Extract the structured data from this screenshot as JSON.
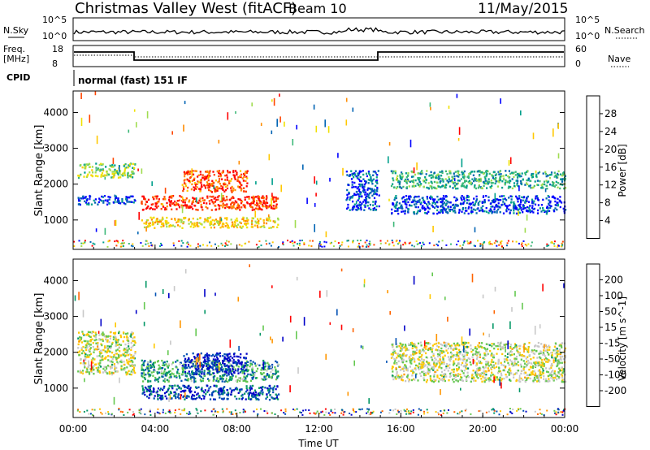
{
  "header": {
    "radar": "Christmas Valley West (fitACF)",
    "beam": "Beam 10",
    "date": "11/May/2015"
  },
  "ancillary": {
    "nsky_label": "N.Sky",
    "nsky_ticks": [
      "10^5",
      "10^0"
    ],
    "nsearch_label": "N.Search",
    "nsearch_ticks": [
      "10^5",
      "10^0"
    ],
    "freq_label": [
      "Freq.",
      "[MHz]"
    ],
    "freq_ticks": [
      "18",
      "8"
    ],
    "nave_label": "Nave",
    "nave_ticks": [
      "60",
      "0"
    ],
    "cpid_label": "CPID",
    "cpid_text": "normal (fast) 151 IF"
  },
  "chart_data": [
    {
      "type": "heatmap",
      "panel": "power",
      "ylabel": "Slant Range [km]",
      "xlim": [
        "00:00",
        "24:00"
      ],
      "ylim": [
        180,
        4600
      ],
      "y_ticks": [
        1000,
        2000,
        3000,
        4000
      ],
      "x_ticks": [
        "00:00",
        "04:00",
        "08:00",
        "12:00",
        "16:00",
        "20:00",
        "00:00"
      ],
      "colorbar": {
        "label": "Power [dB]",
        "ticks": [
          "28",
          "24",
          "20",
          "16",
          "12",
          "8",
          "4"
        ],
        "colors": [
          "#ff0000",
          "#ff4500",
          "#ff8c00",
          "#ffc800",
          "#f0e000",
          "#a0dc50",
          "#3cb878",
          "#00a08c",
          "#0064b4",
          "#0000ff"
        ]
      },
      "features": [
        {
          "t": [
            0.2,
            3.0
          ],
          "r": [
            2200,
            2600
          ],
          "level": 0.45
        },
        {
          "t": [
            0.2,
            3.0
          ],
          "r": [
            1450,
            1700
          ],
          "level": 0.1
        },
        {
          "t": [
            3.3,
            10.0
          ],
          "r": [
            1300,
            1700
          ],
          "level": 0.9
        },
        {
          "t": [
            3.3,
            10.0
          ],
          "r": [
            800,
            1100
          ],
          "level": 0.6
        },
        {
          "t": [
            5.3,
            8.5
          ],
          "r": [
            1800,
            2400
          ],
          "level": 0.85
        },
        {
          "t": [
            13.3,
            14.9
          ],
          "r": [
            1300,
            2400
          ],
          "level": 0.1
        },
        {
          "t": [
            15.5,
            24.0
          ],
          "r": [
            1900,
            2400
          ],
          "level": 0.3
        },
        {
          "t": [
            15.5,
            24.0
          ],
          "r": [
            1200,
            1700
          ],
          "level": 0.1
        }
      ]
    },
    {
      "type": "heatmap",
      "panel": "velocity",
      "ylabel": "Slant Range [km]",
      "xlabel": "Time UT",
      "xlim": [
        "00:00",
        "24:00"
      ],
      "ylim": [
        180,
        4600
      ],
      "y_ticks": [
        1000,
        2000,
        3000,
        4000
      ],
      "x_ticks": [
        "00:00",
        "04:00",
        "08:00",
        "12:00",
        "16:00",
        "20:00",
        "00:00"
      ],
      "colorbar": {
        "label": "Velocity [m s^-1]",
        "ticks": [
          "200",
          "100",
          "50",
          "15",
          "-15",
          "-50",
          "-100",
          "-200"
        ],
        "colors": [
          "#0000c8",
          "#0050b4",
          "#009664",
          "#64c850",
          "#c8c8c8",
          "#ffc800",
          "#ff9600",
          "#ff6400",
          "#ff0000"
        ]
      },
      "features": [
        {
          "t": [
            0.2,
            3.0
          ],
          "r": [
            1400,
            2600
          ],
          "level": 0.5
        },
        {
          "t": [
            3.3,
            10.0
          ],
          "r": [
            700,
            1100
          ],
          "level": 0.85
        },
        {
          "t": [
            3.3,
            10.0
          ],
          "r": [
            1200,
            1800
          ],
          "level": 0.7
        },
        {
          "t": [
            5.3,
            8.5
          ],
          "r": [
            1400,
            2000
          ],
          "level": 0.95
        },
        {
          "t": [
            15.5,
            24.0
          ],
          "r": [
            1200,
            2300
          ],
          "level": 0.5
        }
      ]
    }
  ]
}
